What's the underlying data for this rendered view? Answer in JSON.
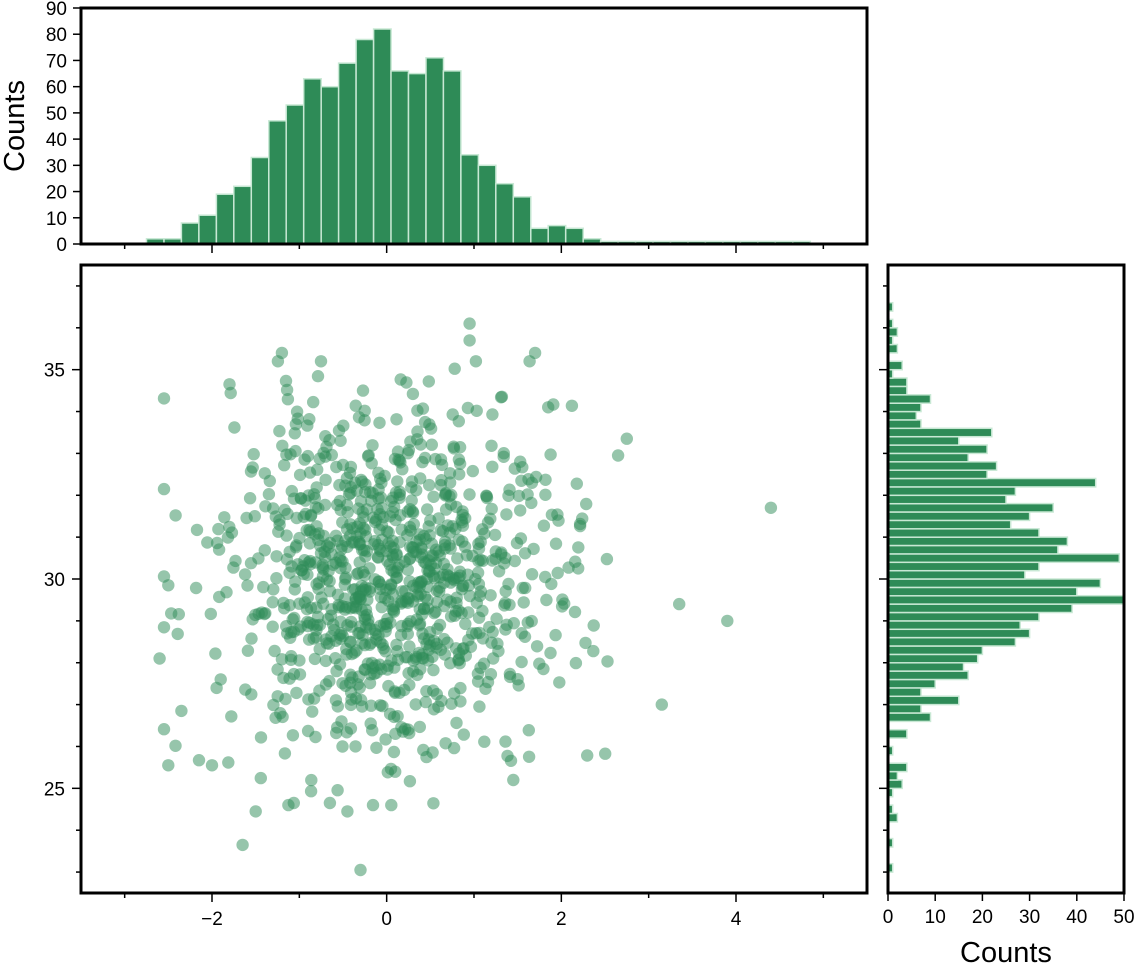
{
  "chart_data": {
    "type": "scatter",
    "colors": {
      "marker": "#2e8b57",
      "bar": "#2e8b57",
      "bar_edge": "#c8e8d4",
      "frame": "#000000"
    },
    "scatter": {
      "marker_opacity": 0.5,
      "xlim": [
        -3.5,
        5.5
      ],
      "ylim": [
        22.5,
        37.5
      ],
      "xticks": [
        -2,
        0,
        2,
        4
      ],
      "xtick_labels": [
        "−2",
        "0",
        "2",
        "4"
      ],
      "yticks": [
        25,
        30,
        35
      ],
      "ytick_labels": [
        "25",
        "30",
        "35"
      ],
      "n_points": 1000,
      "x_mean": 0.05,
      "x_std": 0.95,
      "y_mean": 30.0,
      "y_std": 2.05,
      "notable_points": [
        [
          4.4,
          31.7
        ],
        [
          3.9,
          29.0
        ],
        [
          3.35,
          29.4
        ],
        [
          3.15,
          27.0
        ],
        [
          2.75,
          33.35
        ],
        [
          2.65,
          32.95
        ],
        [
          0.95,
          36.1
        ],
        [
          0.95,
          35.7
        ],
        [
          1.7,
          35.4
        ],
        [
          -1.2,
          35.4
        ],
        [
          -1.8,
          34.65
        ],
        [
          1.85,
          34.1
        ],
        [
          -0.3,
          23.05
        ],
        [
          -1.65,
          23.65
        ],
        [
          -0.45,
          24.45
        ],
        [
          -1.5,
          24.45
        ],
        [
          -0.65,
          24.65
        ],
        [
          1.45,
          25.2
        ],
        [
          -2.5,
          25.55
        ],
        [
          -2.0,
          25.55
        ],
        [
          -2.6,
          28.1
        ],
        [
          -2.5,
          29.85
        ],
        [
          -2.35,
          26.85
        ]
      ]
    },
    "histogram_x": {
      "ylabel": "Counts",
      "ylim": [
        0,
        90
      ],
      "yticks": [
        0,
        10,
        20,
        30,
        40,
        50,
        60,
        70,
        80,
        90
      ],
      "bin_start": -2.75,
      "bin_width": 0.2,
      "counts": [
        2,
        2,
        8,
        11,
        19,
        22,
        33,
        47,
        53,
        63,
        60,
        69,
        78,
        82,
        66,
        65,
        71,
        66,
        34,
        30,
        23,
        18,
        6,
        7,
        6,
        2,
        1,
        1,
        1,
        1,
        1,
        1,
        1,
        1,
        1,
        1,
        1,
        1
      ]
    },
    "histogram_y": {
      "xlabel": "Counts",
      "xlim": [
        0,
        50
      ],
      "xticks": [
        0,
        10,
        20,
        30,
        40,
        50
      ],
      "xtick_labels": [
        "0",
        "10",
        "20",
        "30",
        "40",
        "50"
      ],
      "bin_start": 23.0,
      "bin_width": 0.2,
      "counts": [
        1,
        0,
        0,
        1,
        0,
        0,
        2,
        1,
        0,
        1,
        3,
        2,
        4,
        0,
        1,
        0,
        4,
        0,
        9,
        7,
        15,
        7,
        10,
        17,
        16,
        19,
        20,
        27,
        30,
        28,
        32,
        39,
        50,
        40,
        45,
        29,
        32,
        49,
        36,
        38,
        32,
        26,
        30,
        35,
        25,
        27,
        44,
        21,
        23,
        17,
        21,
        15,
        22,
        7,
        6,
        7,
        9,
        4,
        4,
        1,
        3,
        0,
        2,
        1,
        2,
        1,
        0,
        1
      ]
    }
  }
}
